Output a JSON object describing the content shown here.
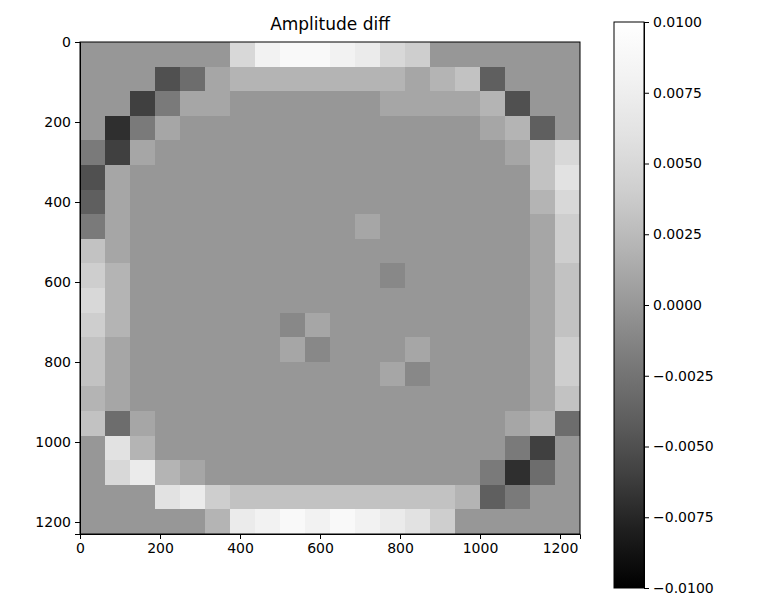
{
  "chart_data": {
    "type": "heatmap",
    "title": "Amplitude diff",
    "color": "gray",
    "xlim": [
      0,
      1250
    ],
    "ylim": [
      1230,
      0
    ],
    "xticks": [
      0,
      200,
      400,
      600,
      800,
      1000,
      1200
    ],
    "yticks": [
      0,
      200,
      400,
      600,
      800,
      1000,
      1200
    ],
    "x": [
      31.25,
      93.75,
      156.25,
      218.75,
      281.25,
      343.75,
      406.25,
      468.75,
      531.25,
      593.75,
      656.25,
      718.75,
      781.25,
      843.75,
      906.25,
      968.75,
      1031.25,
      1093.75,
      1156.25,
      1218.75
    ],
    "y": [
      30.75,
      92.25,
      153.75,
      215.25,
      276.75,
      338.25,
      399.75,
      461.25,
      522.75,
      584.25,
      645.75,
      707.25,
      768.75,
      830.25,
      891.75,
      953.25,
      1014.75,
      1076.25,
      1137.75,
      1199.25
    ],
    "cells": [
      [
        0,
        0,
        0,
        0,
        0,
        0,
        0.005,
        0.008,
        0.009,
        0.009,
        0.008,
        0.007,
        0.005,
        0.004,
        0,
        0,
        0,
        0,
        0,
        0
      ],
      [
        0,
        0,
        0,
        -0.005,
        -0.003,
        0.001,
        0.002,
        0.002,
        0.002,
        0.002,
        0.002,
        0.002,
        0.002,
        0.001,
        0.002,
        0.003,
        -0.004,
        0,
        0,
        0
      ],
      [
        0,
        0,
        -0.006,
        -0.002,
        0.001,
        0.001,
        0,
        0,
        0,
        0,
        0,
        0,
        0.001,
        0.001,
        0.001,
        0.001,
        0.002,
        -0.005,
        0,
        0
      ],
      [
        0,
        -0.007,
        -0.002,
        0.001,
        0,
        0,
        0,
        0,
        0,
        0,
        0,
        0,
        0,
        0,
        0,
        0,
        0.001,
        0.002,
        -0.004,
        0
      ],
      [
        -0.002,
        -0.006,
        0.001,
        0,
        0,
        0,
        0,
        0,
        0,
        0,
        0,
        0,
        0,
        0,
        0,
        0,
        0,
        0.001,
        0.003,
        0.005
      ],
      [
        -0.005,
        0.001,
        0,
        0,
        0,
        0,
        0,
        0,
        0,
        0,
        0,
        0,
        0,
        0,
        0,
        0,
        0,
        0,
        0.003,
        0.006
      ],
      [
        -0.004,
        0.001,
        0,
        0,
        0,
        0,
        0,
        0,
        0,
        0,
        0,
        0,
        0,
        0,
        0,
        0,
        0,
        0,
        0.002,
        0.005
      ],
      [
        -0.002,
        0.001,
        0,
        0,
        0,
        0,
        0,
        0,
        0,
        0,
        0,
        0.001,
        0,
        0,
        0,
        0,
        0,
        0,
        0.001,
        0.004
      ],
      [
        0.003,
        0.001,
        0,
        0,
        0,
        0,
        0,
        0,
        0,
        0,
        0,
        0,
        0,
        0,
        0,
        0,
        0,
        0,
        0.001,
        0.004
      ],
      [
        0.004,
        0.002,
        0,
        0,
        0,
        0,
        0,
        0,
        0,
        0,
        0,
        0,
        -0.001,
        0,
        0,
        0,
        0,
        0,
        0.001,
        0.003
      ],
      [
        0.005,
        0.002,
        0,
        0,
        0,
        0,
        0,
        0,
        0,
        0,
        0,
        0,
        0,
        0,
        0,
        0,
        0,
        0,
        0.001,
        0.003
      ],
      [
        0.004,
        0.002,
        0,
        0,
        0,
        0,
        0,
        0,
        -0.001,
        0.001,
        0,
        0,
        0,
        0,
        0,
        0,
        0,
        0,
        0.001,
        0.003
      ],
      [
        0.003,
        0.001,
        0,
        0,
        0,
        0,
        0,
        0,
        0.001,
        -0.001,
        0,
        0,
        0,
        0.001,
        0,
        0,
        0,
        0,
        0.001,
        0.004
      ],
      [
        0.003,
        0.001,
        0,
        0,
        0,
        0,
        0,
        0,
        0,
        0,
        0,
        0,
        0.001,
        -0.001,
        0,
        0,
        0,
        0,
        0.001,
        0.004
      ],
      [
        0.002,
        0.001,
        0,
        0,
        0,
        0,
        0,
        0,
        0,
        0,
        0,
        0,
        0,
        0,
        0,
        0,
        0,
        0,
        0.001,
        0.003
      ],
      [
        0.003,
        -0.003,
        0.001,
        0,
        0,
        0,
        0,
        0,
        0,
        0,
        0,
        0,
        0,
        0,
        0,
        0,
        0,
        0.001,
        0.002,
        -0.003
      ],
      [
        0,
        0.006,
        0.002,
        0,
        0,
        0,
        0,
        0,
        0,
        0,
        0,
        0,
        0,
        0,
        0,
        0,
        0,
        -0.002,
        -0.006,
        0
      ],
      [
        0,
        0.005,
        0.007,
        0.002,
        0.001,
        0,
        0,
        0,
        0,
        0,
        0,
        0,
        0,
        0,
        0,
        0,
        -0.002,
        -0.007,
        -0.003,
        0
      ],
      [
        0,
        0,
        0,
        0.006,
        0.007,
        0.004,
        0.003,
        0.003,
        0.003,
        0.003,
        0.003,
        0.003,
        0.003,
        0.003,
        0.003,
        0.002,
        -0.004,
        -0.002,
        0,
        0
      ],
      [
        0,
        0,
        0,
        0,
        0,
        0.002,
        0.007,
        0.008,
        0.009,
        0.008,
        0.009,
        0.008,
        0.007,
        0.006,
        0.004,
        0,
        0,
        0,
        0,
        0
      ]
    ],
    "colorbar": {
      "range": [
        -0.01,
        0.01
      ],
      "ticks": [
        {
          "value": -0.01,
          "label": "−0.0100"
        },
        {
          "value": -0.0075,
          "label": "−0.0075"
        },
        {
          "value": -0.005,
          "label": "−0.0050"
        },
        {
          "value": -0.0025,
          "label": "−0.0025"
        },
        {
          "value": 0,
          "label": "0.0000"
        },
        {
          "value": 0.0025,
          "label": "0.0025"
        },
        {
          "value": 0.005,
          "label": "0.0050"
        },
        {
          "value": 0.0075,
          "label": "0.0075"
        },
        {
          "value": 0.01,
          "label": "0.0100"
        }
      ]
    }
  }
}
